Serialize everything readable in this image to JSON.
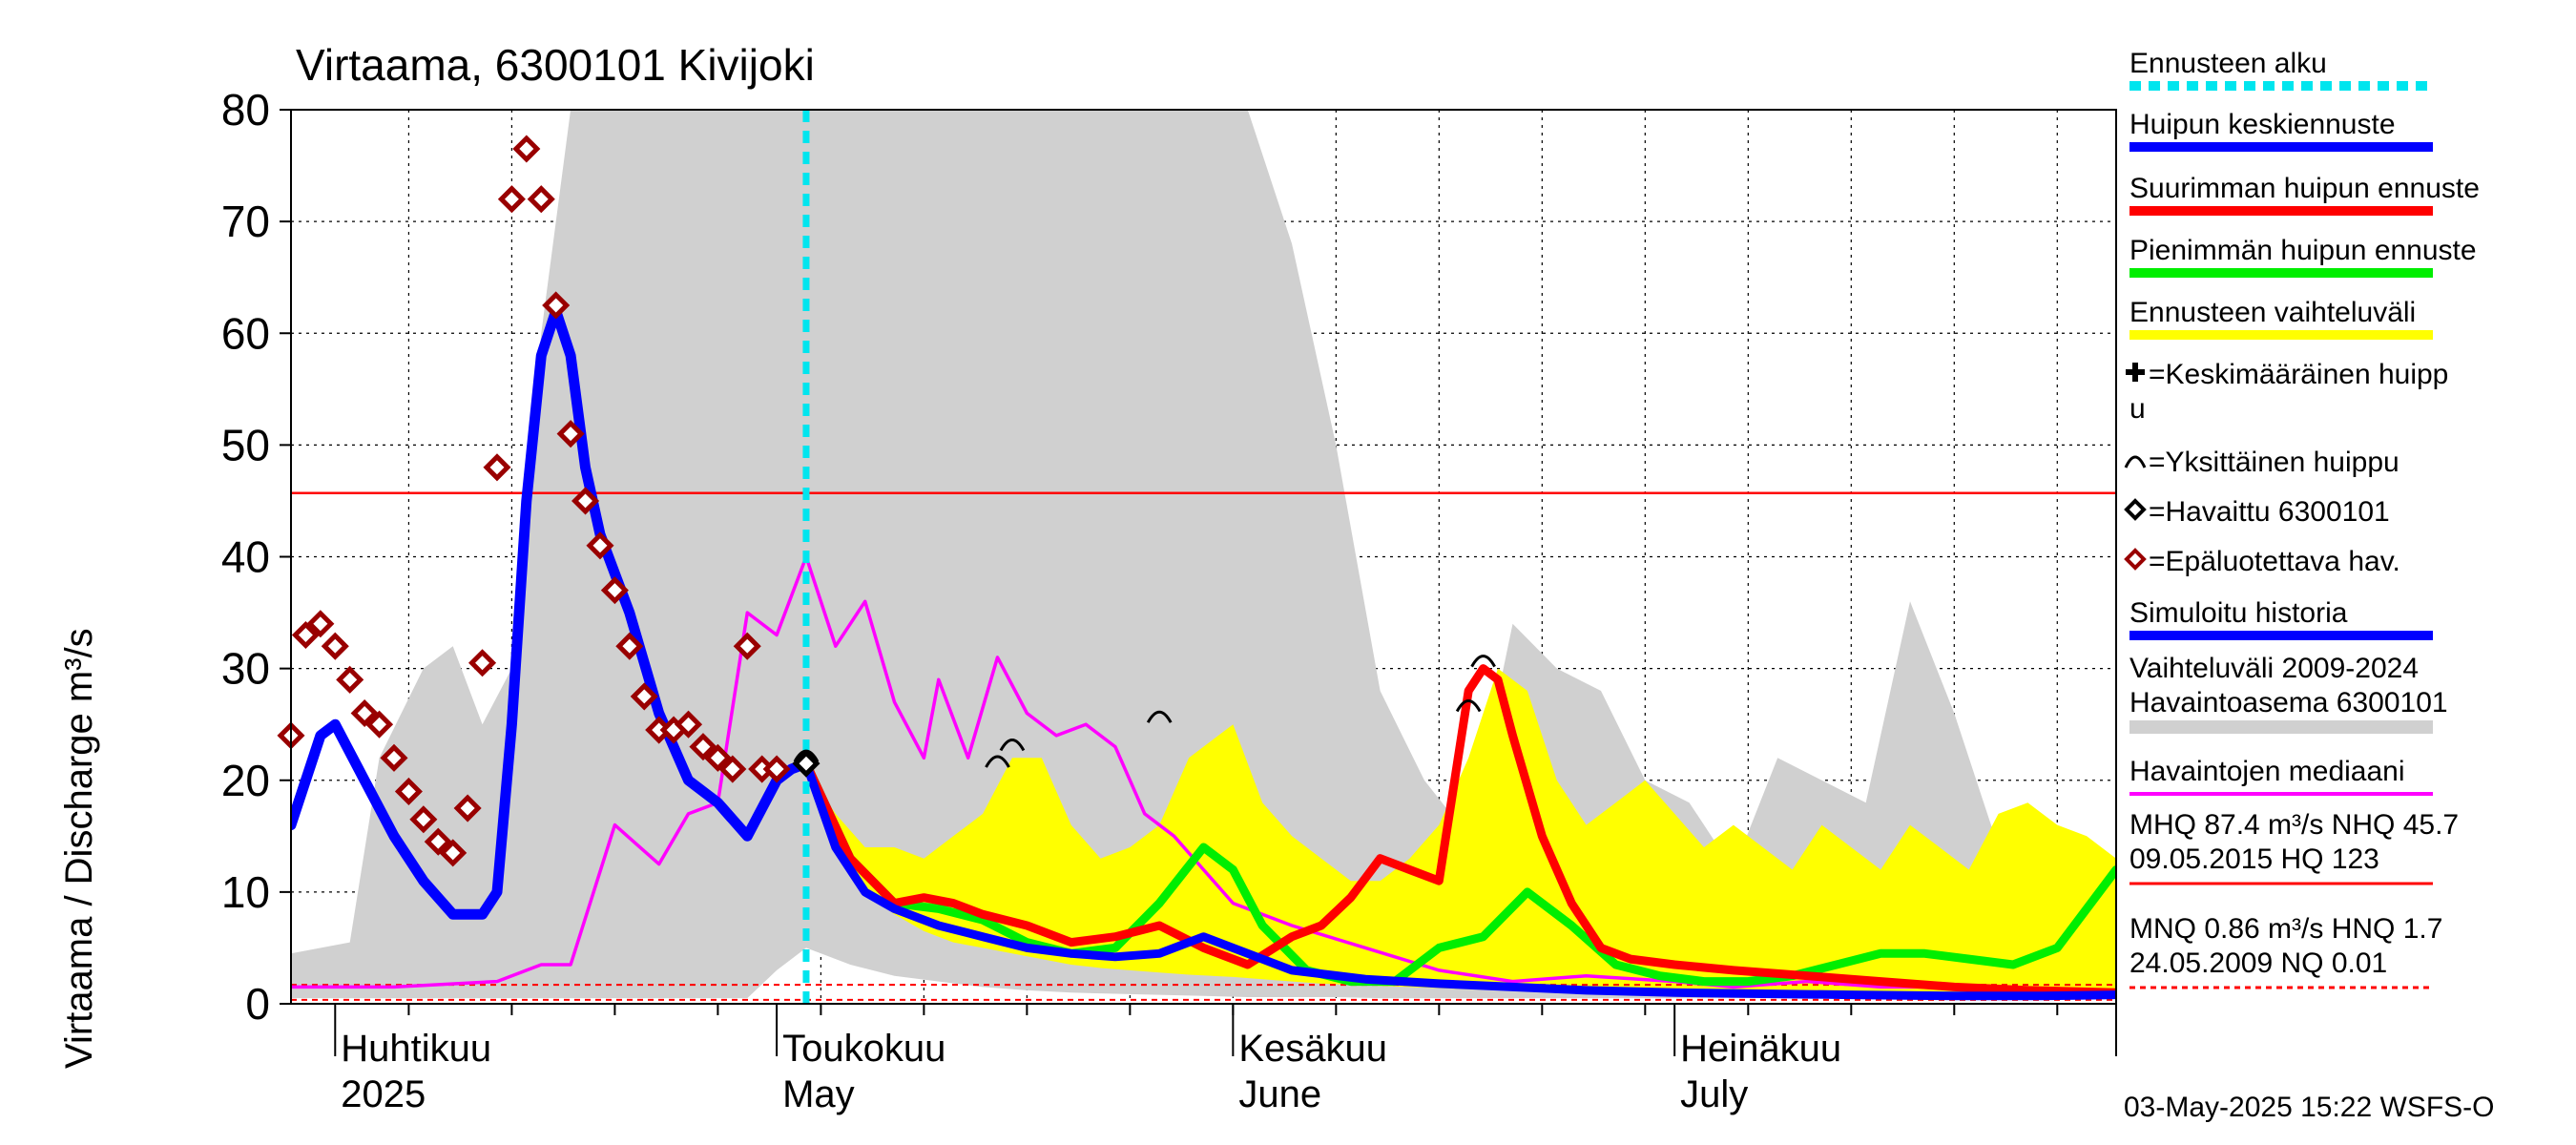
{
  "chart_data": {
    "type": "line",
    "title": "Virtaama, 6300101 Kivijoki",
    "ylabel": "Virtaama / Discharge    m³/s",
    "ylim": [
      0,
      80
    ],
    "yticks": [
      0,
      10,
      20,
      30,
      40,
      50,
      60,
      70,
      80
    ],
    "x_range": [
      "2025-03-29",
      "2025-07-31"
    ],
    "month_labels": [
      {
        "fi": "Huhtikuu",
        "en": "2025",
        "date": "2025-04-01"
      },
      {
        "fi": "Toukokuu",
        "en": "May",
        "date": "2025-05-01"
      },
      {
        "fi": "Kesäkuu",
        "en": "June",
        "date": "2025-06-01"
      },
      {
        "fi": "Heinäkuu",
        "en": "July",
        "date": "2025-07-01"
      }
    ],
    "forecast_start": "2025-05-03",
    "reference_lines": {
      "NHQ": 45.7,
      "HNQ": 1.7,
      "NQ": 0.01
    },
    "variation_band_2009_2024": {
      "x": [
        "2025-03-29",
        "2025-04-02",
        "2025-04-04",
        "2025-04-07",
        "2025-04-09",
        "2025-04-11",
        "2025-04-13",
        "2025-04-15",
        "2025-04-17",
        "2025-04-19",
        "2025-04-21",
        "2025-04-23",
        "2025-04-25",
        "2025-04-27",
        "2025-04-29",
        "2025-05-01",
        "2025-05-03",
        "2025-05-06",
        "2025-05-09",
        "2025-05-12",
        "2025-05-15",
        "2025-05-18",
        "2025-05-21",
        "2025-05-24",
        "2025-05-27",
        "2025-05-30",
        "2025-06-02",
        "2025-06-05",
        "2025-06-08",
        "2025-06-11",
        "2025-06-14",
        "2025-06-17",
        "2025-06-20",
        "2025-06-23",
        "2025-06-26",
        "2025-06-29",
        "2025-07-02",
        "2025-07-05",
        "2025-07-08",
        "2025-07-11",
        "2025-07-14",
        "2025-07-17",
        "2025-07-20",
        "2025-07-23",
        "2025-07-26",
        "2025-07-29",
        "2025-07-31"
      ],
      "upper": [
        4.5,
        5.5,
        22,
        30,
        32,
        25,
        30,
        60,
        80,
        80,
        80,
        80,
        80,
        80,
        80,
        80,
        80,
        80,
        80,
        80,
        80,
        80,
        80,
        80,
        80,
        80,
        80,
        68,
        50,
        28,
        20,
        15,
        34,
        30,
        28,
        20,
        18,
        12,
        22,
        20,
        18,
        36,
        26,
        14,
        12,
        10,
        8
      ],
      "lower": [
        0.5,
        0.5,
        0.5,
        0.5,
        0.5,
        0.5,
        0.5,
        0.5,
        0.5,
        0.5,
        0.5,
        0.5,
        0.5,
        0.5,
        0.5,
        3,
        5,
        3.5,
        2.5,
        2,
        1.5,
        1.2,
        1.0,
        0.9,
        0.8,
        0.7,
        0.6,
        0.6,
        0.6,
        0.5,
        0.5,
        0.5,
        0.5,
        0.5,
        0.5,
        0.5,
        0.5,
        0.5,
        0.5,
        0.5,
        0.5,
        0.5,
        0.5,
        0.5,
        0.5,
        0.5,
        0.5
      ]
    },
    "forecast_band": {
      "x": [
        "2025-05-03",
        "2025-05-05",
        "2025-05-07",
        "2025-05-09",
        "2025-05-11",
        "2025-05-13",
        "2025-05-15",
        "2025-05-17",
        "2025-05-19",
        "2025-05-21",
        "2025-05-23",
        "2025-05-25",
        "2025-05-27",
        "2025-05-29",
        "2025-06-01",
        "2025-06-03",
        "2025-06-05",
        "2025-06-07",
        "2025-06-09",
        "2025-06-11",
        "2025-06-13",
        "2025-06-15",
        "2025-06-17",
        "2025-06-19",
        "2025-06-21",
        "2025-06-23",
        "2025-06-25",
        "2025-06-27",
        "2025-06-29",
        "2025-07-01",
        "2025-07-03",
        "2025-07-05",
        "2025-07-07",
        "2025-07-09",
        "2025-07-11",
        "2025-07-13",
        "2025-07-15",
        "2025-07-17",
        "2025-07-19",
        "2025-07-21",
        "2025-07-23",
        "2025-07-25",
        "2025-07-27",
        "2025-07-29",
        "2025-07-31"
      ],
      "upper": [
        21,
        17,
        14,
        14,
        13,
        15,
        17,
        22,
        22,
        16,
        13,
        14,
        16,
        22,
        25,
        18,
        15,
        13,
        11,
        11,
        13,
        16,
        22,
        30,
        28,
        20,
        16,
        18,
        20,
        17,
        14,
        16,
        14,
        12,
        16,
        14,
        12,
        16,
        14,
        12,
        17,
        18,
        16,
        15,
        13
      ],
      "lower": [
        21,
        15,
        10,
        8,
        6.5,
        5.5,
        5,
        4.5,
        4,
        3.5,
        3.2,
        3,
        2.8,
        2.6,
        2.4,
        2.2,
        2.0,
        1.8,
        1.7,
        1.6,
        1.5,
        1.4,
        1.3,
        1.2,
        1.2,
        1.1,
        1.0,
        1.0,
        0.9,
        0.9,
        0.8,
        0.8,
        0.8,
        0.7,
        0.7,
        0.7,
        0.7,
        0.6,
        0.6,
        0.6,
        0.6,
        0.6,
        0.6,
        0.6,
        0.6
      ]
    },
    "series": [
      {
        "name": "Havaintojen mediaani",
        "color": "#ff00ff",
        "x": [
          "2025-03-29",
          "2025-04-05",
          "2025-04-12",
          "2025-04-15",
          "2025-04-17",
          "2025-04-20",
          "2025-04-23",
          "2025-04-25",
          "2025-04-27",
          "2025-04-29",
          "2025-05-01",
          "2025-05-03",
          "2025-05-05",
          "2025-05-07",
          "2025-05-09",
          "2025-05-11",
          "2025-05-12",
          "2025-05-14",
          "2025-05-16",
          "2025-05-18",
          "2025-05-20",
          "2025-05-22",
          "2025-05-24",
          "2025-05-26",
          "2025-05-28",
          "2025-05-30",
          "2025-06-01",
          "2025-06-05",
          "2025-06-10",
          "2025-06-15",
          "2025-06-20",
          "2025-06-25",
          "2025-07-01",
          "2025-07-05",
          "2025-07-10",
          "2025-07-15",
          "2025-07-20",
          "2025-07-25",
          "2025-07-31"
        ],
        "values": [
          1.5,
          1.5,
          2,
          3.5,
          3.5,
          16,
          12.5,
          17,
          18,
          35,
          33,
          40,
          32,
          36,
          27,
          22,
          29,
          22,
          31,
          26,
          24,
          25,
          23,
          17,
          15,
          12,
          9,
          7,
          5,
          3,
          2,
          2.5,
          2,
          1.5,
          2,
          1.5,
          1.5,
          1.2,
          1
        ]
      },
      {
        "name": "Simuloitu historia",
        "color": "#0000ff",
        "x": [
          "2025-03-29",
          "2025-03-31",
          "2025-04-01",
          "2025-04-03",
          "2025-04-05",
          "2025-04-07",
          "2025-04-09",
          "2025-04-11",
          "2025-04-12",
          "2025-04-13",
          "2025-04-14",
          "2025-04-15",
          "2025-04-16",
          "2025-04-17",
          "2025-04-18",
          "2025-04-19",
          "2025-04-21",
          "2025-04-23",
          "2025-04-25",
          "2025-04-27",
          "2025-04-29",
          "2025-05-01",
          "2025-05-02",
          "2025-05-03"
        ],
        "values": [
          16,
          24,
          25,
          20,
          15,
          11,
          8,
          8,
          10,
          25,
          45,
          58,
          62,
          58,
          48,
          42,
          35,
          26,
          20,
          18,
          15,
          20,
          21,
          21.5
        ]
      },
      {
        "name": "Huipun keskiennuste",
        "color": "#0000ff",
        "x": [
          "2025-05-03",
          "2025-05-05",
          "2025-05-07",
          "2025-05-09",
          "2025-05-12",
          "2025-05-15",
          "2025-05-18",
          "2025-05-21",
          "2025-05-24",
          "2025-05-27",
          "2025-05-30",
          "2025-06-02",
          "2025-06-05",
          "2025-06-10",
          "2025-06-15",
          "2025-06-20",
          "2025-06-25",
          "2025-07-01",
          "2025-07-07",
          "2025-07-13",
          "2025-07-20",
          "2025-07-26",
          "2025-07-31"
        ],
        "values": [
          21.5,
          14,
          10,
          8.5,
          7,
          6,
          5,
          4.5,
          4.2,
          4.5,
          6,
          4.5,
          3,
          2.2,
          1.8,
          1.5,
          1.2,
          1,
          0.9,
          0.8,
          0.7,
          0.7,
          0.8
        ]
      },
      {
        "name": "Suurimman huipun ennuste",
        "color": "#ff0000",
        "x": [
          "2025-05-03",
          "2025-05-06",
          "2025-05-09",
          "2025-05-11",
          "2025-05-13",
          "2025-05-15",
          "2025-05-18",
          "2025-05-21",
          "2025-05-24",
          "2025-05-27",
          "2025-05-30",
          "2025-06-02",
          "2025-06-05",
          "2025-06-07",
          "2025-06-09",
          "2025-06-11",
          "2025-06-13",
          "2025-06-15",
          "2025-06-17",
          "2025-06-18",
          "2025-06-19",
          "2025-06-20",
          "2025-06-22",
          "2025-06-24",
          "2025-06-26",
          "2025-06-28",
          "2025-07-01",
          "2025-07-05",
          "2025-07-10",
          "2025-07-15",
          "2025-07-20",
          "2025-07-25",
          "2025-07-31"
        ],
        "values": [
          21.5,
          13,
          9,
          9.5,
          9,
          8,
          7,
          5.5,
          6,
          7,
          5,
          3.5,
          6,
          7,
          9.5,
          13,
          12,
          11,
          28,
          30,
          29,
          24,
          15,
          9,
          5,
          4,
          3.5,
          3,
          2.5,
          2,
          1.5,
          1.2,
          1
        ]
      },
      {
        "name": "Pienimmän huipun ennuste",
        "color": "#00ee00",
        "x": [
          "2025-05-03",
          "2025-05-06",
          "2025-05-09",
          "2025-05-12",
          "2025-05-15",
          "2025-05-18",
          "2025-05-21",
          "2025-05-24",
          "2025-05-27",
          "2025-05-30",
          "2025-06-01",
          "2025-06-03",
          "2025-06-06",
          "2025-06-09",
          "2025-06-12",
          "2025-06-15",
          "2025-06-18",
          "2025-06-21",
          "2025-06-24",
          "2025-06-27",
          "2025-06-30",
          "2025-07-03",
          "2025-07-06",
          "2025-07-09",
          "2025-07-12",
          "2025-07-15",
          "2025-07-18",
          "2025-07-21",
          "2025-07-24",
          "2025-07-27",
          "2025-07-31"
        ],
        "values": [
          21.5,
          13,
          9,
          8.5,
          7.5,
          5.5,
          4.5,
          5,
          9,
          14,
          12,
          7,
          3,
          2,
          2,
          5,
          6,
          10,
          7,
          3.5,
          2.5,
          2,
          2,
          2.5,
          3.5,
          4.5,
          4.5,
          4,
          3.5,
          5,
          12
        ]
      }
    ],
    "observed_unreliable": {
      "name": "Epäluotettava hav.",
      "x": [
        "2025-03-29",
        "2025-03-30",
        "2025-03-31",
        "2025-04-01",
        "2025-04-02",
        "2025-04-03",
        "2025-04-04",
        "2025-04-05",
        "2025-04-06",
        "2025-04-07",
        "2025-04-08",
        "2025-04-09",
        "2025-04-10",
        "2025-04-11",
        "2025-04-12",
        "2025-04-13",
        "2025-04-14",
        "2025-04-15",
        "2025-04-16",
        "2025-04-17",
        "2025-04-18",
        "2025-04-19",
        "2025-04-20",
        "2025-04-21",
        "2025-04-22",
        "2025-04-23",
        "2025-04-24",
        "2025-04-25",
        "2025-04-26",
        "2025-04-27",
        "2025-04-28",
        "2025-04-29",
        "2025-04-30",
        "2025-05-01"
      ],
      "values": [
        24,
        33,
        34,
        32,
        29,
        26,
        25,
        22,
        19,
        16.5,
        14.5,
        13.5,
        17.5,
        30.5,
        48,
        72,
        76.5,
        72,
        62.5,
        51,
        45,
        41,
        37,
        32,
        27.5,
        24.5,
        24.5,
        25,
        23,
        22,
        21,
        32,
        21,
        21
      ]
    },
    "observed": {
      "name": "Havaittu 6300101",
      "x": [
        "2025-05-03"
      ],
      "values": [
        21.5
      ]
    },
    "individual_peaks": {
      "x": [
        "2025-05-03",
        "2025-05-16",
        "2025-05-17",
        "2025-05-27",
        "2025-06-17",
        "2025-06-18"
      ],
      "values": [
        21.5,
        21,
        22.5,
        25,
        26,
        30
      ]
    },
    "legend": [
      {
        "label": "Ennusteen alku",
        "color": "#00e5ee",
        "style": "dashed"
      },
      {
        "label": "Huipun keskiennuste",
        "color": "#0000ff"
      },
      {
        "label": "Suurimman huipun ennuste",
        "color": "#ff0000"
      },
      {
        "label": "Pienimmän huipun ennuste",
        "color": "#00ee00"
      },
      {
        "label": "Ennusteen vaihteluväli",
        "color": "#ffff00"
      },
      {
        "label": "=Keskimääräinen huipp",
        "label2": "u",
        "marker": "plus"
      },
      {
        "label": "=Yksittäinen huippu",
        "marker": "arc"
      },
      {
        "label": "=Havaittu 6300101",
        "marker": "diamond-black"
      },
      {
        "label": "=Epäluotettava hav.",
        "marker": "diamond-red"
      },
      {
        "label": "Simuloitu historia",
        "color": "#0000ff"
      },
      {
        "label": "Vaihteluväli 2009-2024",
        "label2": " Havaintoasema 6300101",
        "color": "#d0d0d0"
      },
      {
        "label": "Havaintojen mediaani",
        "color": "#ff00ff"
      },
      {
        "label": "MHQ 87.4 m³/s NHQ 45.7",
        "label2": "09.05.2015 HQ  123",
        "color": "#ff0000"
      },
      {
        "label": "MNQ 0.86 m³/s HNQ  1.7",
        "label2": "24.05.2009 NQ 0.01",
        "color": "#ff0000",
        "style": "dashed"
      }
    ],
    "footer": "03-May-2025 15:22 WSFS-O",
    "grid": true
  }
}
